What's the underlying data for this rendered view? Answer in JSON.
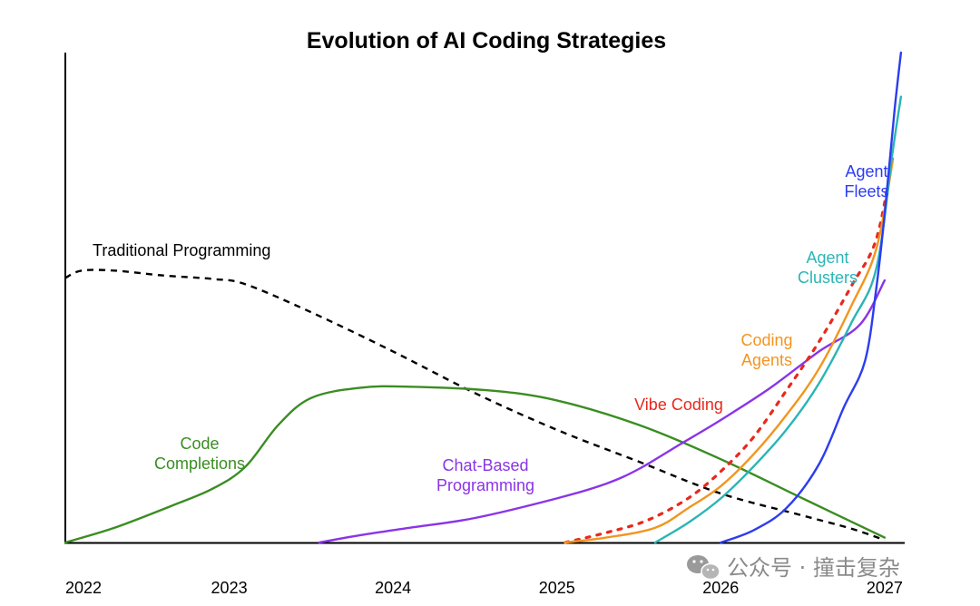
{
  "chart_data": {
    "type": "line",
    "title": "Evolution of AI Coding Strategies",
    "xlabel": "",
    "ylabel": "",
    "grid": false,
    "xlim": [
      2022,
      2027.25
    ],
    "ylim": [
      0,
      100
    ],
    "x_ticks": [
      "2022",
      "2023",
      "2024",
      "2025",
      "2026",
      "2027"
    ],
    "series": [
      {
        "name": "Traditional Programming",
        "label_lines": [
          "Traditional Programming"
        ],
        "color": "#000000",
        "dash": "dashed",
        "x": [
          2022.0,
          2022.1,
          2022.3,
          2022.6,
          2022.9,
          2023.1,
          2023.5,
          2024.0,
          2024.5,
          2025.0,
          2025.5,
          2026.0,
          2026.5,
          2026.8,
          2027.0
        ],
        "y": [
          54,
          55.5,
          55.5,
          54.5,
          53.8,
          52.7,
          47,
          39,
          30.5,
          23,
          16.5,
          10,
          5.5,
          2.8,
          0.5
        ]
      },
      {
        "name": "Code Completions",
        "label_lines": [
          "Code",
          "Completions"
        ],
        "color": "#3a8d22",
        "dash": "solid",
        "x": [
          2022.0,
          2022.3,
          2022.65,
          2022.9,
          2023.1,
          2023.3,
          2023.5,
          2023.8,
          2024.1,
          2024.6,
          2025.0,
          2025.5,
          2026.0,
          2026.5,
          2027.0
        ],
        "y": [
          0,
          3,
          7.5,
          11,
          15.5,
          24,
          29.5,
          31.6,
          31.8,
          31,
          29,
          24,
          17,
          9,
          1
        ]
      },
      {
        "name": "Chat-Based Programming",
        "label_lines": [
          "Chat-Based",
          "Programming"
        ],
        "color": "#8a34e8",
        "dash": "solid",
        "x": [
          2023.55,
          2023.8,
          2024.1,
          2024.5,
          2025.0,
          2025.3,
          2025.5,
          2025.75,
          2026.0,
          2026.3,
          2026.6,
          2026.85,
          2027.0
        ],
        "y": [
          0,
          1.5,
          3,
          5,
          9,
          12,
          15,
          20,
          25,
          31.5,
          39,
          44.5,
          53.5
        ]
      },
      {
        "name": "Vibe Coding",
        "label_lines": [
          "Vibe Coding"
        ],
        "color": "#e8291c",
        "dash": "dotted",
        "x": [
          2025.05,
          2025.3,
          2025.55,
          2025.8,
          2026.0,
          2026.2,
          2026.4,
          2026.6,
          2026.8,
          2026.95,
          2027.05
        ],
        "y": [
          0,
          2,
          4.5,
          9,
          14.5,
          21.5,
          31,
          41,
          52.5,
          62,
          79
        ]
      },
      {
        "name": "Coding Agents",
        "label_lines": [
          "Coding",
          "Agents"
        ],
        "color": "#f2951f",
        "dash": "solid",
        "x": [
          2025.05,
          2025.3,
          2025.6,
          2025.8,
          2026.0,
          2026.2,
          2026.4,
          2026.6,
          2026.8,
          2026.95,
          2027.05
        ],
        "y": [
          0,
          1,
          3,
          7,
          11.5,
          18,
          26,
          35.5,
          48.5,
          60,
          78
        ]
      },
      {
        "name": "Agent Clusters",
        "label_lines": [
          "Agent",
          "Clusters"
        ],
        "color": "#2ab5b5",
        "dash": "solid",
        "x": [
          2025.6,
          2025.8,
          2026.0,
          2026.2,
          2026.4,
          2026.6,
          2026.8,
          2026.95,
          2027.05,
          2027.1
        ],
        "y": [
          0,
          4,
          9,
          15.5,
          23,
          32.5,
          45,
          56,
          80,
          91
        ]
      },
      {
        "name": "Agent Fleets",
        "label_lines": [
          "Agent",
          "Fleets"
        ],
        "color": "#2c3cf0",
        "dash": "solid",
        "x": [
          2026.0,
          2026.2,
          2026.4,
          2026.6,
          2026.75,
          2026.88,
          2026.95,
          2027.0,
          2027.06,
          2027.1
        ],
        "y": [
          0,
          2.5,
          7,
          16,
          27.5,
          37,
          52,
          67,
          88,
          100
        ]
      }
    ]
  },
  "watermark": {
    "icon": "wechat-icon",
    "text": "公众号 · 撞击复杂"
  }
}
